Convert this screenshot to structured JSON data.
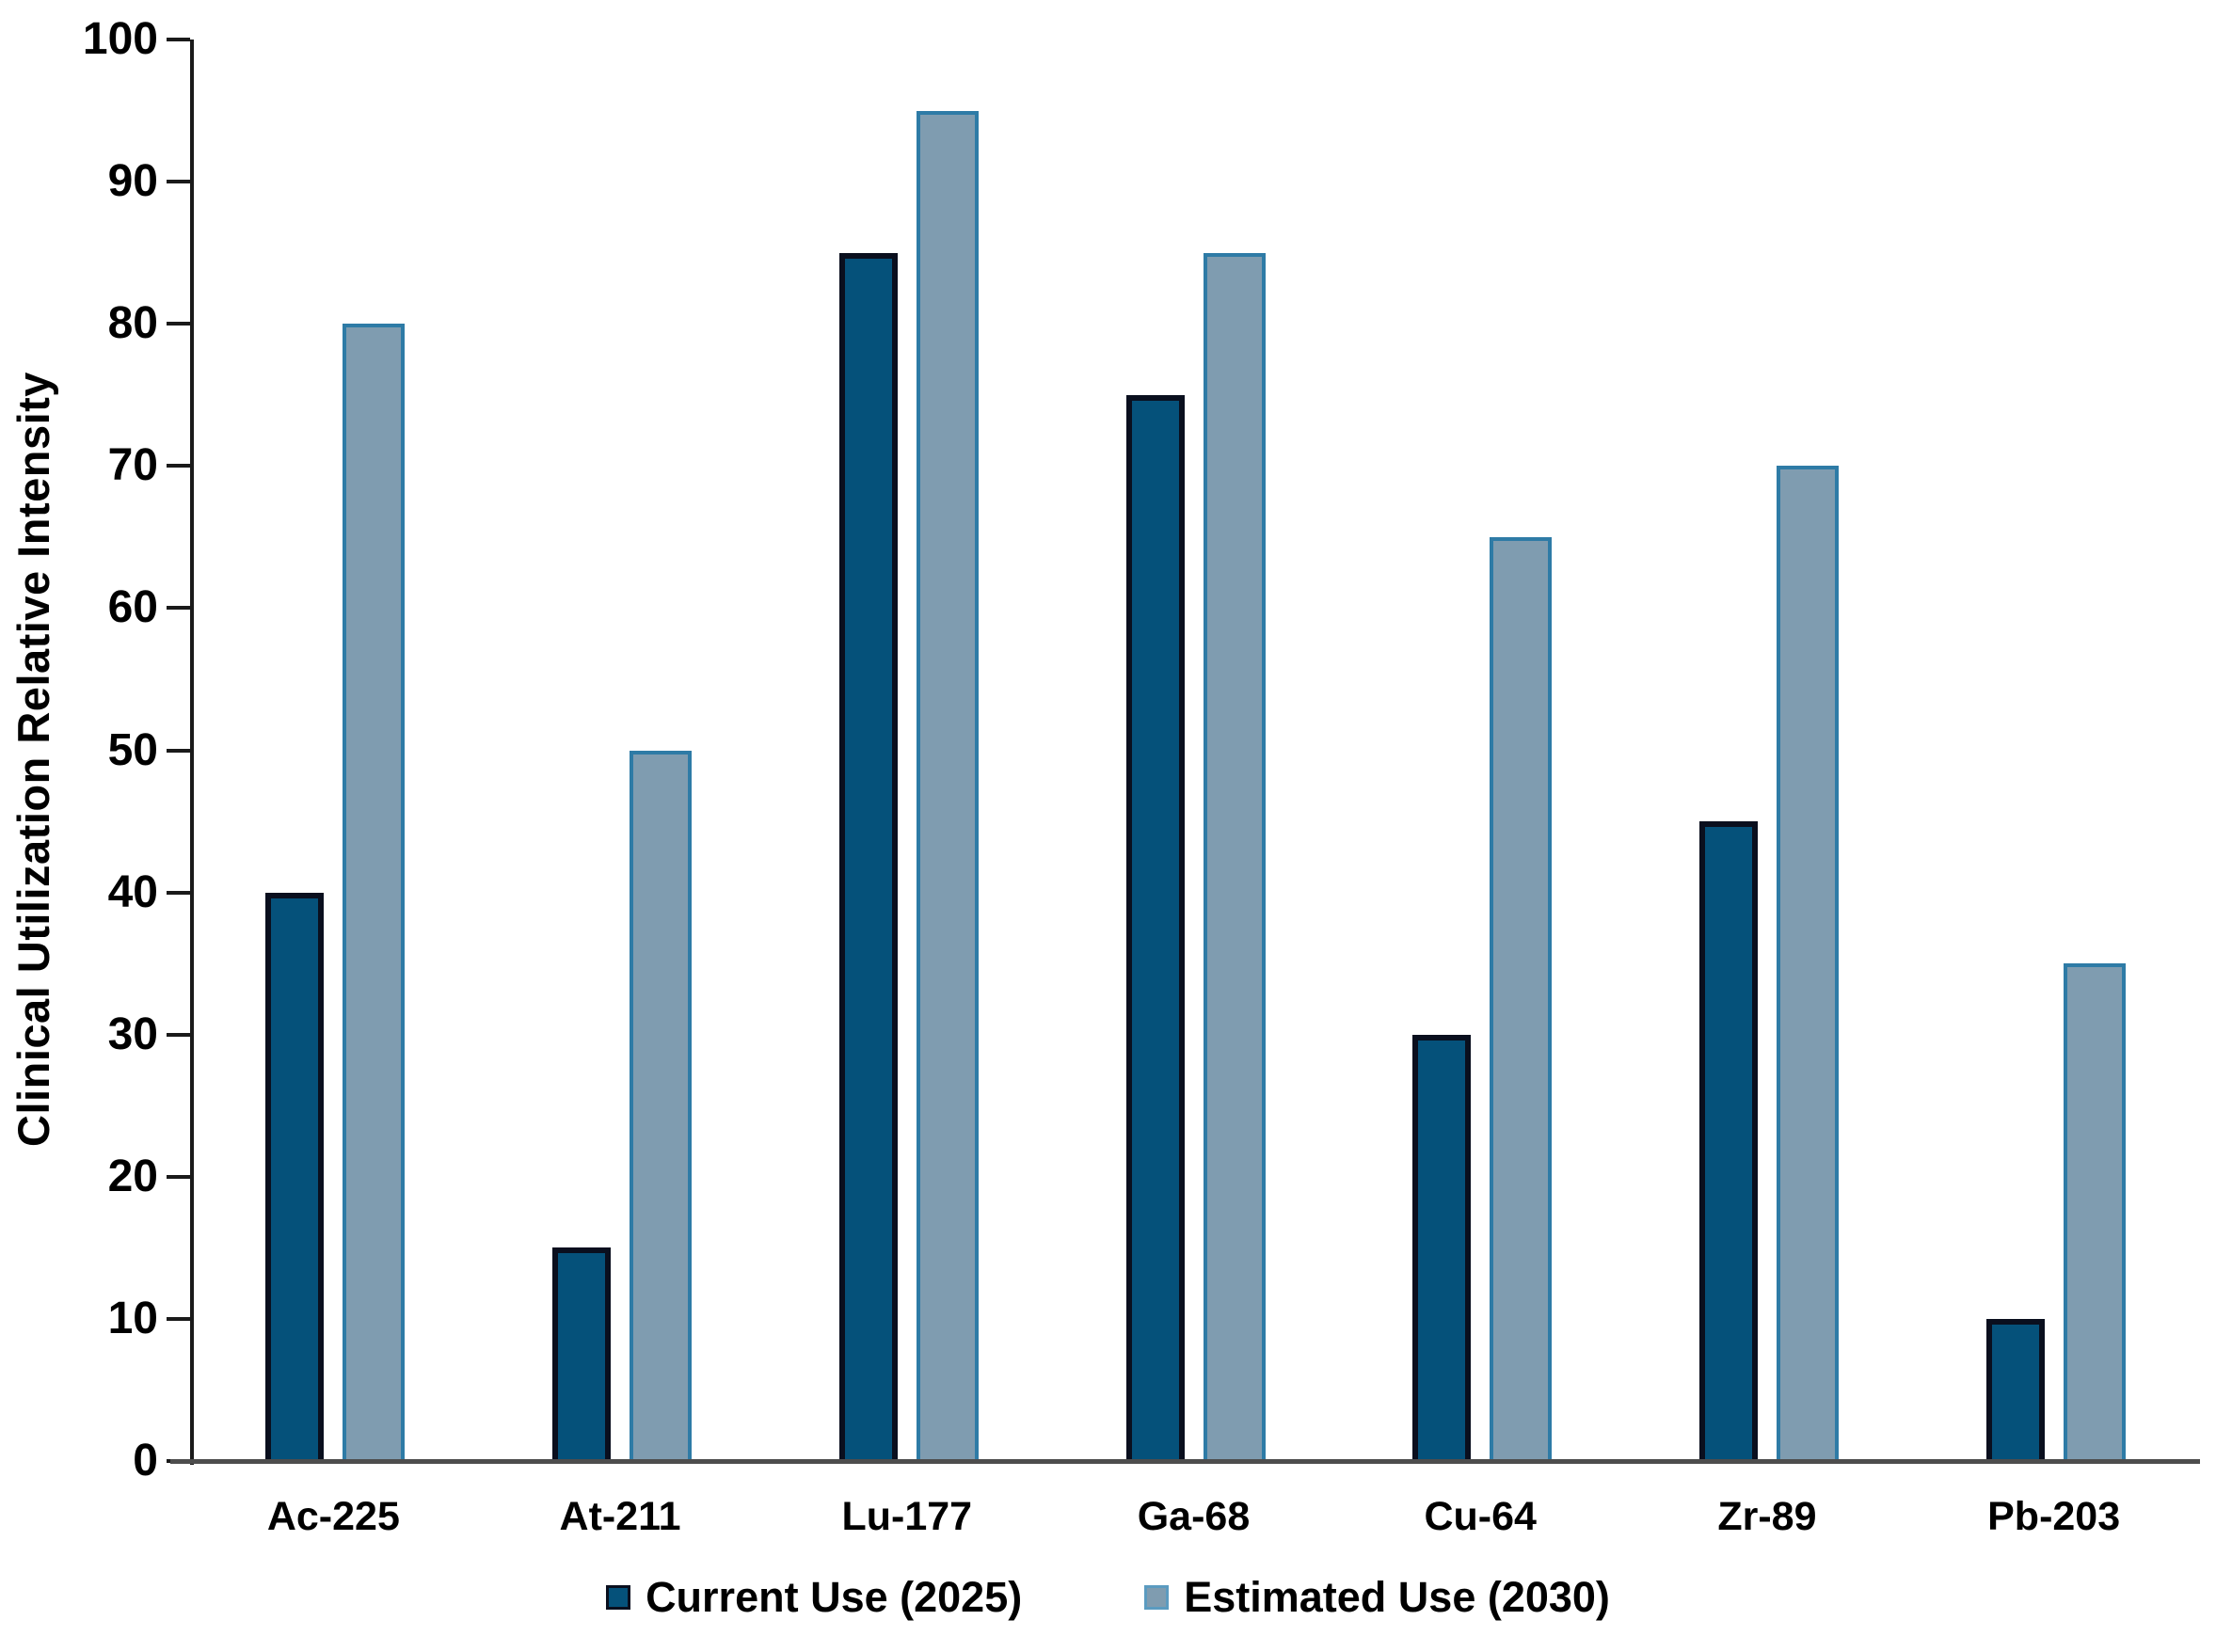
{
  "chart_data": {
    "type": "bar",
    "title": "",
    "ylabel": "Clinical Utilization Relative Intensity",
    "xlabel": "",
    "categories": [
      "Ac-225",
      "At-211",
      "Lu-177",
      "Ga-68",
      "Cu-64",
      "Zr-89",
      "Pb-203"
    ],
    "series": [
      {
        "name": "Current Use (2025)",
        "values": [
          40,
          15,
          85,
          75,
          30,
          45,
          10
        ],
        "fill_color": "#05517a",
        "border_color": "#0a0f1e"
      },
      {
        "name": "Estimated Use (2030)",
        "values": [
          80,
          50,
          95,
          85,
          65,
          70,
          35
        ],
        "fill_color": "#7f9cb0",
        "border_color": "#2e7ba6"
      }
    ],
    "ylim": [
      0,
      100
    ],
    "ytick_step": 10,
    "yticks": [
      0,
      10,
      20,
      30,
      40,
      50,
      60,
      70,
      80,
      90,
      100
    ],
    "grid": false,
    "legend_position": "bottom",
    "axis_color": "#1a1a1a",
    "baseline_color": "#4d4d4d",
    "text_color": "#000000",
    "background_color": "#ffffff"
  }
}
